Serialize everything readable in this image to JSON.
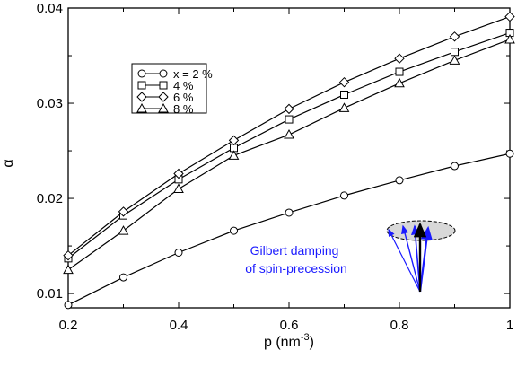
{
  "chart_data": {
    "type": "line",
    "xlabel": "p (nm",
    "xlabel_sup": "-3",
    "xlabel_close": ")",
    "ylabel": "α",
    "xlim": [
      0.2,
      1.0
    ],
    "ylim": [
      0.0085,
      0.04
    ],
    "xticks": [
      0.2,
      0.4,
      0.6,
      0.8,
      1.0
    ],
    "xtick_labels": [
      "0.2",
      "0.4",
      "0.6",
      "0.8",
      "1"
    ],
    "yticks": [
      0.01,
      0.02,
      0.03,
      0.04
    ],
    "ytick_labels": [
      "0.01",
      "0.02",
      "0.03",
      "0.04"
    ],
    "grid": false,
    "legend_position": "top-left",
    "x": [
      0.2,
      0.3,
      0.4,
      0.5,
      0.6,
      0.7,
      0.8,
      0.9,
      1.0
    ],
    "series": [
      {
        "name": "x = 2 %",
        "marker": "circle",
        "values": [
          0.0088,
          0.0117,
          0.0143,
          0.0166,
          0.0185,
          0.0203,
          0.0219,
          0.0234,
          0.0247
        ]
      },
      {
        "name": "4 %",
        "marker": "square",
        "values": [
          0.0137,
          0.0182,
          0.022,
          0.0253,
          0.0283,
          0.0309,
          0.0333,
          0.0354,
          0.0374
        ]
      },
      {
        "name": "6 %",
        "marker": "diamond",
        "values": [
          0.014,
          0.0186,
          0.0226,
          0.0261,
          0.0294,
          0.0322,
          0.0347,
          0.037,
          0.0391
        ]
      },
      {
        "name": "8 %",
        "marker": "triangle",
        "values": [
          0.0125,
          0.0166,
          0.021,
          0.0245,
          0.0267,
          0.0295,
          0.0321,
          0.0345,
          0.0367
        ]
      }
    ],
    "annotation": {
      "line1": "Gilbert damping",
      "line2": "of  spin-precession"
    },
    "colors": {
      "axes": "#000000",
      "annotation": "#1a1aff",
      "ellipse_fill": "#d8d8d8"
    }
  }
}
